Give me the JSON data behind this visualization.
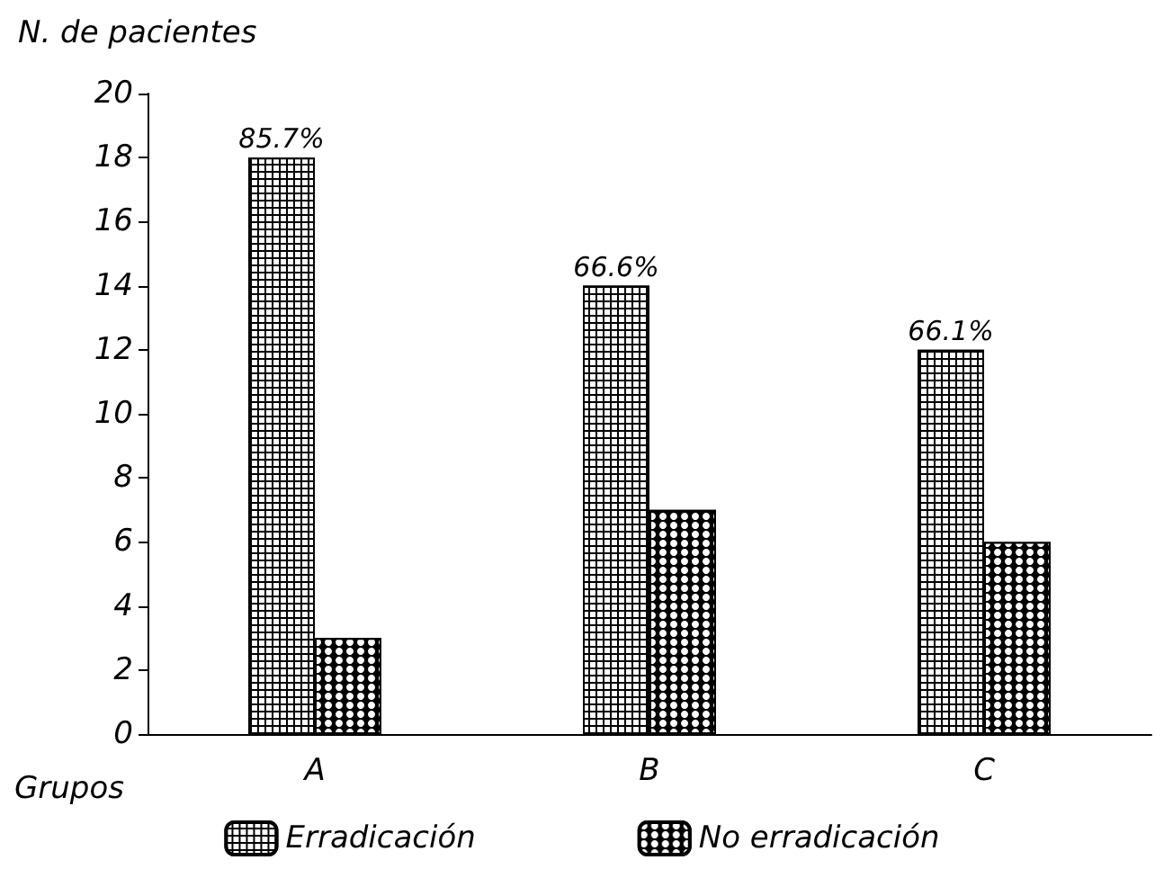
{
  "chart_data": {
    "type": "bar",
    "ylabel": "N. de pacientes",
    "xlabel": "Grupos",
    "categories": [
      "A",
      "B",
      "C"
    ],
    "series": [
      {
        "name": "Erradicación",
        "color": "#000000",
        "values": [
          18,
          14,
          12
        ]
      },
      {
        "name": "No erradicación",
        "color": "#000000",
        "values": [
          3,
          7,
          6
        ]
      }
    ],
    "annotations": [
      {
        "text": "85.7%",
        "x": "A",
        "y": 18
      },
      {
        "text": "66.6%",
        "x": "B",
        "y": 14
      },
      {
        "text": "66.1%",
        "x": "C",
        "y": 12
      }
    ],
    "ylim": [
      0,
      20
    ],
    "yticks": [
      0,
      2,
      4,
      6,
      8,
      10,
      12,
      14,
      16,
      18,
      20
    ],
    "grid": false,
    "legend": "bottom"
  }
}
